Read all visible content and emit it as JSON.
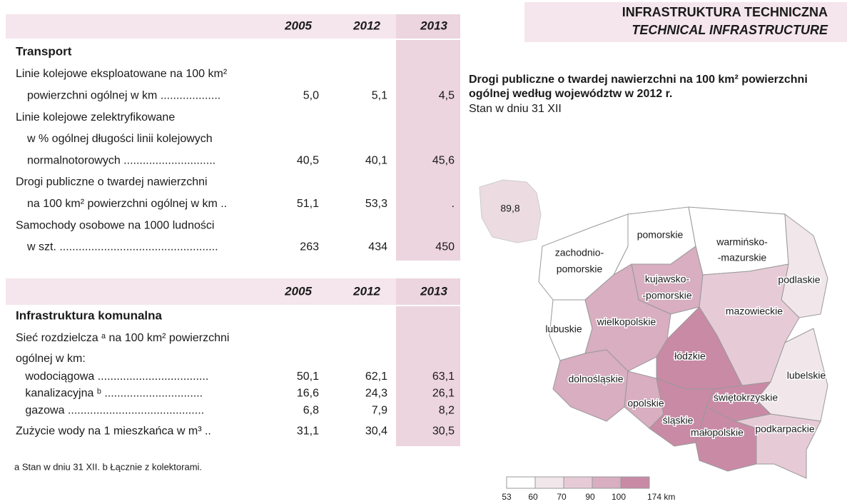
{
  "header": {
    "title": "INFRASTRUKTURA TECHNICZNA",
    "subtitle": "TECHNICAL INFRASTRUCTURE"
  },
  "tables": [
    {
      "columns": [
        "2005",
        "2012",
        "2013"
      ],
      "section": "Transport",
      "rows": [
        {
          "lines": [
            "Linie kolejowe eksploatowane na 100 km²",
            "powierzchni ogólnej w km ..................."
          ],
          "values": [
            "5,0",
            "5,1",
            "4,5"
          ]
        },
        {
          "lines": [
            "Linie kolejowe zelektryfikowane",
            "w % ogólnej długości linii kolejowych",
            "normalnotorowych ............................."
          ],
          "values": [
            "40,5",
            "40,1",
            "45,6"
          ]
        },
        {
          "lines": [
            "Drogi publiczne o twardej nawierzchni",
            "na 100 km² powierzchni ogólnej w km .."
          ],
          "values": [
            "51,1",
            "53,3",
            "."
          ]
        },
        {
          "lines": [
            "Samochody osobowe na 1000 ludności",
            "w szt. .................................................."
          ],
          "values": [
            "263",
            "434",
            "450"
          ]
        }
      ]
    },
    {
      "columns": [
        "2005",
        "2012",
        "2013"
      ],
      "section": "Infrastruktura komunalna",
      "rows": [
        {
          "lines": [
            "Sieć rozdzielcza ᵃ na 100 km² powierzchni",
            "ogólnej w km:"
          ]
        },
        {
          "lines": [
            "   wodociągowa ..................................."
          ],
          "values": [
            "50,1",
            "62,1",
            "63,1"
          ]
        },
        {
          "lines": [
            "   kanalizacyjna ᵇ ..............................."
          ],
          "values": [
            "16,6",
            "24,3",
            "26,1"
          ]
        },
        {
          "lines": [
            "   gazowa ..........................................."
          ],
          "values": [
            "6,8",
            "7,9",
            "8,2"
          ]
        },
        {
          "lines": [
            "Zużycie wody na 1 mieszkańca w m³ .."
          ],
          "values": [
            "31,1",
            "30,4",
            "30,5"
          ]
        }
      ]
    }
  ],
  "footnote": "a Stan w dniu 31 XII. b Łącznie z kolektorami.",
  "map": {
    "title": [
      "Drogi publiczne o twardej nawierzchni na 100 km² powierzchni",
      "ogólnej według województw w 2012 r."
    ],
    "subtitle": "Stan w dniu 31 XII",
    "country_value": "89,8",
    "regions": [
      {
        "lines": [
          "pomorskie"
        ]
      },
      {
        "lines": [
          "warmińsko-",
          "-mazurskie"
        ]
      },
      {
        "lines": [
          "zachodnio-",
          "pomorskie"
        ]
      },
      {
        "lines": [
          "kujawsko-",
          "-pomorskie"
        ]
      },
      {
        "lines": [
          "podlaskie"
        ]
      },
      {
        "lines": [
          "mazowieckie"
        ]
      },
      {
        "lines": [
          "lubuskie"
        ]
      },
      {
        "lines": [
          "wielkopolskie"
        ]
      },
      {
        "lines": [
          "łódzkie"
        ]
      },
      {
        "lines": [
          "dolnośląskie"
        ]
      },
      {
        "lines": [
          "lubelskie"
        ]
      },
      {
        "lines": [
          "opolskie"
        ]
      },
      {
        "lines": [
          "świętokrzyskie"
        ]
      },
      {
        "lines": [
          "śląskie"
        ]
      },
      {
        "lines": [
          "podkarpackie"
        ]
      },
      {
        "lines": [
          "małopolskie"
        ]
      }
    ],
    "legend": [
      "53",
      "60",
      "70",
      "90",
      "100",
      "174 km"
    ]
  }
}
